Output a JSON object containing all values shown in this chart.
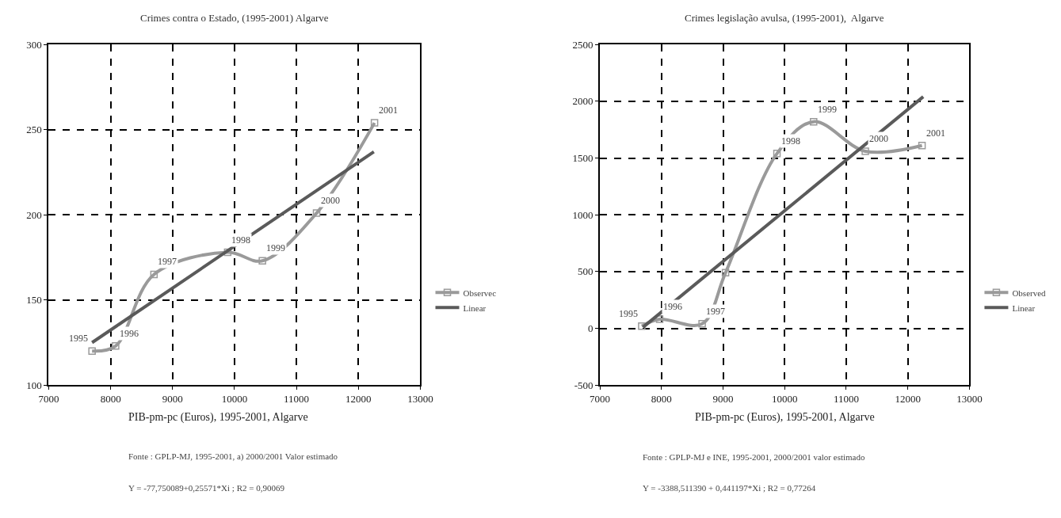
{
  "chart_data": [
    {
      "type": "line",
      "title": "Crimes contra o Estado, (1995-2001) Algarve",
      "xlabel": "PIB-pm-pc (Euros), 1995-2001, Algarve",
      "xlim": [
        7000,
        13000
      ],
      "xticks": [
        7000,
        8000,
        9000,
        10000,
        11000,
        12000,
        13000
      ],
      "ylim": [
        100,
        300
      ],
      "yticks": [
        100,
        150,
        200,
        250,
        300
      ],
      "grid": true,
      "legend": "right",
      "marker": "square",
      "series": [
        {
          "name": "Observec",
          "color": "#9a9a9a",
          "x": [
            7700,
            8080,
            8700,
            9890,
            10450,
            11325,
            12260
          ],
          "values": [
            120,
            123,
            165,
            178,
            173,
            201,
            254
          ]
        },
        {
          "name": "Linear",
          "color": "#5a5a5a",
          "marker": "none",
          "x": [
            7700,
            12250
          ],
          "values": [
            125,
            237
          ]
        }
      ],
      "annotations": [
        {
          "text": "1995",
          "x": 7700,
          "y": 120
        },
        {
          "text": "1996",
          "x": 8080,
          "y": 123
        },
        {
          "text": "1997",
          "x": 8700,
          "y": 165
        },
        {
          "text": "1998",
          "x": 9890,
          "y": 178
        },
        {
          "text": "1999",
          "x": 10450,
          "y": 173
        },
        {
          "text": "2000",
          "x": 11325,
          "y": 201
        },
        {
          "text": "2001",
          "x": 12260,
          "y": 254
        },
        "Fonte : GPLP-MJ, 1995-2001, a) 2000/2001 Valor estimado",
        "Y = -77,750089+0,25571*Xi ; R2 = 0,90069"
      ]
    },
    {
      "type": "line",
      "title": "Crimes legislação avulsa, (1995-2001),  Algarve",
      "xlabel": "PIB-pm-pc (Euros), 1995-2001, Algarve",
      "xlim": [
        7000,
        13000
      ],
      "xticks": [
        7000,
        8000,
        9000,
        10000,
        11000,
        12000,
        13000
      ],
      "ylim": [
        -500,
        2500
      ],
      "yticks": [
        -500,
        0,
        500,
        1000,
        1500,
        2000,
        2500
      ],
      "grid": true,
      "legend": "right",
      "marker": "square",
      "series": [
        {
          "name": "Observed",
          "color": "#9a9a9a",
          "x": [
            7680,
            7970,
            8660,
            9040,
            9875,
            10470,
            11310,
            12230
          ],
          "values": [
            20,
            80,
            40,
            490,
            1540,
            1820,
            1560,
            1610
          ]
        },
        {
          "name": "Linear",
          "color": "#5a5a5a",
          "marker": "none",
          "x": [
            7700,
            12250
          ],
          "values": [
            10,
            2040
          ]
        }
      ],
      "annotations": [
        {
          "text": "1995",
          "x": 7680,
          "y": 20
        },
        {
          "text": "1996",
          "x": 7970,
          "y": 80
        },
        {
          "text": "1997",
          "x": 8660,
          "y": 40
        },
        {
          "text": "1998",
          "x": 9875,
          "y": 1540
        },
        {
          "text": "1999",
          "x": 10470,
          "y": 1820
        },
        {
          "text": "2000",
          "x": 11310,
          "y": 1560
        },
        {
          "text": "2001",
          "x": 12230,
          "y": 1610
        },
        "Fonte : GPLP-MJ e INE, 1995-2001, 2000/2001 valor estimado",
        "Y = -3388,511390 + 0,441197*Xi ; R2 = 0,77264"
      ]
    }
  ]
}
